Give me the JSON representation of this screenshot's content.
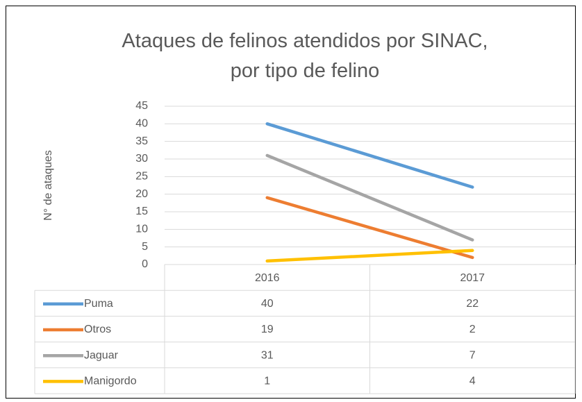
{
  "chart_data": {
    "type": "line",
    "title": "Ataques de felinos atendidos por SINAC,\npor tipo de felino",
    "y_label": "N° de ataques",
    "categories": [
      "2016",
      "2017"
    ],
    "series": [
      {
        "name": "Puma",
        "color": "#5b9bd5",
        "values": [
          40,
          22
        ]
      },
      {
        "name": "Otros",
        "color": "#ed7d31",
        "values": [
          19,
          2
        ]
      },
      {
        "name": "Jaguar",
        "color": "#a5a5a5",
        "values": [
          31,
          7
        ]
      },
      {
        "name": "Manigordo",
        "color": "#ffc000",
        "values": [
          1,
          4
        ]
      }
    ],
    "ylim": [
      0,
      45
    ],
    "yticks": [
      0,
      5,
      10,
      15,
      20,
      25,
      30,
      35,
      40,
      45
    ],
    "grid": true,
    "data_table": true
  }
}
